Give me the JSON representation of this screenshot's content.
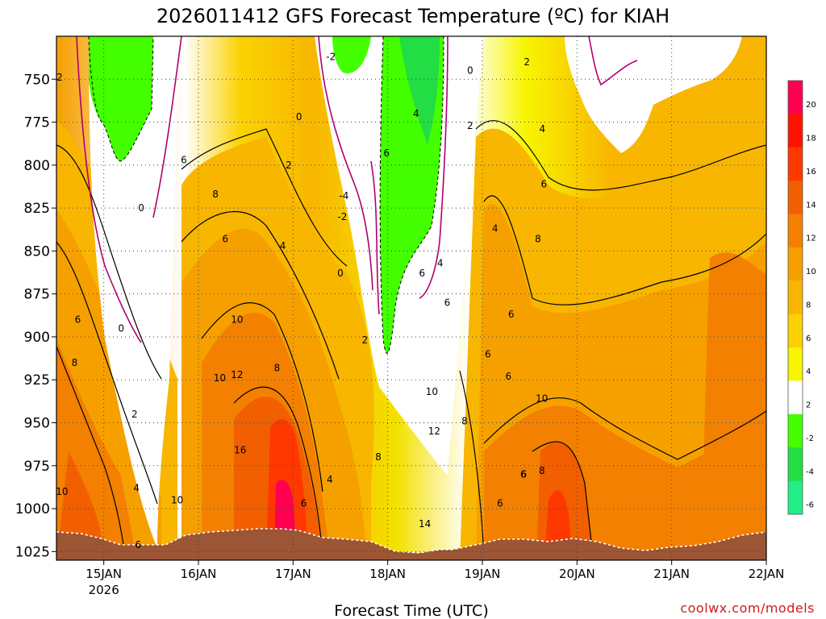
{
  "chart_data": {
    "type": "contour",
    "title": "2026011412 GFS Forecast Temperature (ºC) for KIAH",
    "xlabel": "Forecast Time (UTC)",
    "ylabel": "",
    "credit": "coolwx.com/models",
    "ylim": [
      725,
      1030
    ],
    "yticks": [
      750,
      775,
      800,
      825,
      850,
      875,
      900,
      925,
      950,
      975,
      1000,
      1025
    ],
    "xticks": [
      {
        "label": "15JAN",
        "sub": "2026",
        "t": 12
      },
      {
        "label": "16JAN",
        "sub": "",
        "t": 36
      },
      {
        "label": "17JAN",
        "sub": "",
        "t": 60
      },
      {
        "label": "18JAN",
        "sub": "",
        "t": 84
      },
      {
        "label": "19JAN",
        "sub": "",
        "t": 108
      },
      {
        "label": "20JAN",
        "sub": "",
        "t": 132
      },
      {
        "label": "21JAN",
        "sub": "",
        "t": 156
      },
      {
        "label": "22JAN",
        "sub": "",
        "t": 180
      }
    ],
    "xlim": [
      0,
      180
    ],
    "colorbar": {
      "labels": [
        "20",
        "18",
        "16",
        "14",
        "12",
        "10",
        "8",
        "6",
        "4",
        "2",
        "-2",
        "-4",
        "-6"
      ],
      "colors": [
        "#ff0050",
        "#ff1200",
        "#ff3800",
        "#f25f00",
        "#f38000",
        "#f6a000",
        "#f8b600",
        "#fbd200",
        "#f8f500",
        "#ffffff",
        "#44ff00",
        "#22dd44",
        "#22ee88"
      ]
    },
    "surface_pressure": [
      1012,
      1013,
      1017,
      1018,
      1016,
      1015,
      1017,
      1017,
      1016,
      1014,
      1013,
      1012,
      1013,
      1016,
      1019,
      1021,
      1022,
      1020,
      1016,
      1017,
      1020,
      1022,
      1021,
      1020,
      1017,
      1017,
      1020,
      1021,
      1019,
      1019,
      1020,
      1018,
      1015,
      1014
    ],
    "level_profiles": [
      {
        "t": 0,
        "p": [
          3,
          4,
          5,
          6,
          7,
          8,
          9,
          10,
          11,
          12,
          13
        ]
      },
      {
        "t": 12,
        "p": [
          1,
          3,
          4,
          6,
          8,
          9,
          10,
          12,
          13,
          14,
          15
        ]
      },
      {
        "t": 24,
        "p": [
          0,
          1,
          2,
          3,
          4,
          5,
          6,
          7,
          7,
          8,
          9
        ]
      },
      {
        "t": 36,
        "p": [
          2,
          3,
          4,
          6,
          7,
          8,
          9,
          10,
          11,
          12,
          14
        ]
      },
      {
        "t": 60,
        "p": [
          3,
          5,
          6,
          7,
          8,
          10,
          12,
          14,
          16,
          18,
          20
        ]
      },
      {
        "t": 78,
        "p": [
          -2,
          -4,
          -2,
          0,
          2,
          4,
          6,
          7,
          8,
          9,
          10
        ]
      },
      {
        "t": 84,
        "p": [
          -2,
          -4,
          -2,
          0,
          1,
          2,
          3,
          4,
          5,
          6,
          7
        ]
      },
      {
        "t": 108,
        "p": [
          4,
          5,
          6,
          6,
          7,
          7,
          8,
          8,
          9,
          9,
          10
        ]
      },
      {
        "t": 132,
        "p": [
          1,
          2,
          3,
          4,
          5,
          6,
          8,
          10,
          11,
          12,
          14
        ]
      },
      {
        "t": 156,
        "p": [
          0,
          2,
          4,
          5,
          6,
          6,
          7,
          7,
          8,
          8,
          9
        ]
      },
      {
        "t": 180,
        "p": [
          4,
          5,
          6,
          7,
          8,
          8,
          9,
          9,
          10,
          10,
          10
        ]
      }
    ],
    "contour_labels": [
      {
        "text": "2",
        "t": 0.8,
        "p": 749
      },
      {
        "text": "0",
        "t": 21.5,
        "p": 825
      },
      {
        "text": "0",
        "t": 16.4,
        "p": 895
      },
      {
        "text": "6",
        "t": 5.4,
        "p": 890
      },
      {
        "text": "8",
        "t": 4.6,
        "p": 915
      },
      {
        "text": "10",
        "t": 1.4,
        "p": 990
      },
      {
        "text": "2",
        "t": 19.8,
        "p": 945
      },
      {
        "text": "4",
        "t": 20.3,
        "p": 988
      },
      {
        "text": "6",
        "t": 20.7,
        "p": 1021
      },
      {
        "text": "6",
        "t": 32.3,
        "p": 797
      },
      {
        "text": "8",
        "t": 40.3,
        "p": 817
      },
      {
        "text": "6",
        "t": 42.8,
        "p": 843
      },
      {
        "text": "10",
        "t": 30.6,
        "p": 995
      },
      {
        "text": "10",
        "t": 41.4,
        "p": 924
      },
      {
        "text": "12",
        "t": 45.8,
        "p": 922
      },
      {
        "text": "10",
        "t": 45.8,
        "p": 890
      },
      {
        "text": "16",
        "t": 46.6,
        "p": 966
      },
      {
        "text": "8",
        "t": 55.9,
        "p": 918
      },
      {
        "text": "4",
        "t": 57.4,
        "p": 847
      },
      {
        "text": "2",
        "t": 58.9,
        "p": 800
      },
      {
        "text": "0",
        "t": 61.5,
        "p": 772
      },
      {
        "text": "-2",
        "t": 69.6,
        "p": 737
      },
      {
        "text": "-4",
        "t": 72.9,
        "p": 818
      },
      {
        "text": "-2",
        "t": 72.5,
        "p": 830
      },
      {
        "text": "0",
        "t": 72.0,
        "p": 863
      },
      {
        "text": "2",
        "t": 78.2,
        "p": 902
      },
      {
        "text": "4",
        "t": 69.3,
        "p": 983
      },
      {
        "text": "6",
        "t": 62.7,
        "p": 997
      },
      {
        "text": "6",
        "t": 83.7,
        "p": 793
      },
      {
        "text": "4",
        "t": 91.2,
        "p": 770
      },
      {
        "text": "6",
        "t": 92.7,
        "p": 863
      },
      {
        "text": "4",
        "t": 97.3,
        "p": 857
      },
      {
        "text": "6",
        "t": 99.1,
        "p": 880
      },
      {
        "text": "8",
        "t": 81.6,
        "p": 970
      },
      {
        "text": "10",
        "t": 95.2,
        "p": 932
      },
      {
        "text": "12",
        "t": 95.8,
        "p": 955
      },
      {
        "text": "8",
        "t": 103.5,
        "p": 949
      },
      {
        "text": "14",
        "t": 93.4,
        "p": 1009
      },
      {
        "text": "6",
        "t": 109.4,
        "p": 910
      },
      {
        "text": "6",
        "t": 115.3,
        "p": 887
      },
      {
        "text": "6",
        "t": 114.6,
        "p": 923
      },
      {
        "text": "6",
        "t": 112.5,
        "p": 997
      },
      {
        "text": "6",
        "t": 118.5,
        "p": 980
      },
      {
        "text": "0",
        "t": 104.9,
        "p": 745
      },
      {
        "text": "2",
        "t": 104.9,
        "p": 777
      },
      {
        "text": "2",
        "t": 119.3,
        "p": 740
      },
      {
        "text": "4",
        "t": 123.2,
        "p": 779
      },
      {
        "text": "4",
        "t": 111.2,
        "p": 837
      },
      {
        "text": "6",
        "t": 123.6,
        "p": 811
      },
      {
        "text": "8",
        "t": 122.1,
        "p": 843
      },
      {
        "text": "10",
        "t": 123.1,
        "p": 936
      },
      {
        "text": "8",
        "t": 123.1,
        "p": 978
      },
      {
        "text": "6",
        "t": 118.4,
        "p": 980
      }
    ]
  }
}
